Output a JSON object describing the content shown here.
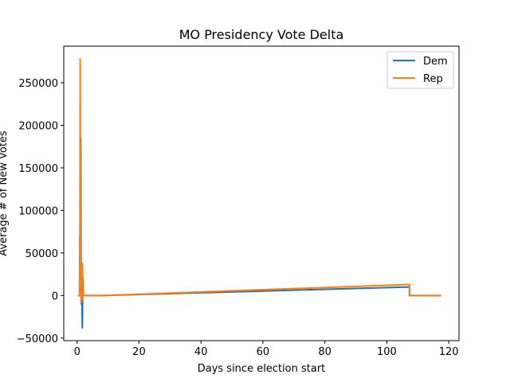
{
  "chart_data": {
    "type": "line",
    "title": "MO Presidency Vote Delta",
    "xlabel": "Days since election start",
    "ylabel": "Average # of New Votes",
    "xlim": [
      -4.3,
      123.3
    ],
    "ylim": [
      -53000,
      293000
    ],
    "xticks": [
      0,
      20,
      40,
      60,
      80,
      100,
      120
    ],
    "yticks": [
      -50000,
      0,
      50000,
      100000,
      150000,
      200000,
      250000
    ],
    "grid": false,
    "legend_position": "top-right",
    "series": [
      {
        "name": "Dem",
        "color": "#1f77b4",
        "x": [
          0.3,
          0.8,
          0.9,
          1.0,
          1.1,
          1.2,
          1.3,
          1.4,
          1.5,
          1.6,
          1.7,
          1.8,
          1.9,
          2.0,
          2.2,
          8,
          107.3,
          107.3,
          117.5
        ],
        "y": [
          0,
          0,
          70000,
          10000,
          60000,
          184000,
          20000,
          -10000,
          30000,
          -20000,
          -38000,
          5000,
          20000,
          0,
          0,
          0,
          10000,
          0,
          0
        ]
      },
      {
        "name": "Rep",
        "color": "#ff7f0e",
        "x": [
          0.3,
          0.8,
          0.9,
          1.0,
          1.1,
          1.2,
          1.3,
          1.4,
          1.5,
          1.6,
          1.7,
          1.8,
          1.9,
          2.0,
          2.2,
          8,
          107.3,
          107.3,
          117.5
        ],
        "y": [
          0,
          0,
          40000,
          278000,
          120000,
          10000,
          -8000,
          30000,
          0,
          -5000,
          38000,
          10000,
          0,
          0,
          0,
          0,
          13000,
          0,
          0
        ]
      }
    ]
  }
}
